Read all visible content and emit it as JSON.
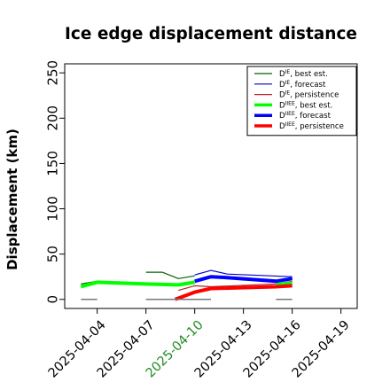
{
  "chart_data": {
    "type": "line",
    "title": "Ice edge displacement distance",
    "xlabel": "",
    "ylabel": "Displacement (km)",
    "ylim": [
      0,
      260
    ],
    "xlim": [
      "2025-04-02",
      "2025-04-20"
    ],
    "yticks": [
      0,
      50,
      100,
      150,
      200,
      250
    ],
    "xticks": [
      {
        "label": "2025-04-04",
        "date": "2025-04-04",
        "color": "#000000"
      },
      {
        "label": "2025-04-07",
        "date": "2025-04-07",
        "color": "#000000"
      },
      {
        "label": "2025-04-10",
        "date": "2025-04-10",
        "color": "#228B22"
      },
      {
        "label": "2025-04-13",
        "date": "2025-04-13",
        "color": "#000000"
      },
      {
        "label": "2025-04-16",
        "date": "2025-04-16",
        "color": "#000000"
      },
      {
        "label": "2025-04-19",
        "date": "2025-04-19",
        "color": "#000000"
      }
    ],
    "grid": false,
    "legend_position": "top-right",
    "series": [
      {
        "name_main": "D",
        "name_sup": "IE",
        "name_rest": ", best est.",
        "color": "#006400",
        "width": 1.2,
        "points": [
          [
            "2025-04-03",
            17
          ],
          [
            "2025-04-04",
            20
          ]
        ]
      },
      {
        "name_main": "D",
        "name_sup": "IE",
        "name_rest": ", best est.",
        "color": "#006400",
        "width": 1.2,
        "legend": false,
        "points": [
          [
            "2025-04-07",
            30
          ],
          [
            "2025-04-08",
            30
          ],
          [
            "2025-04-09",
            23
          ],
          [
            "2025-04-10",
            26
          ]
        ]
      },
      {
        "name_main": "D",
        "name_sup": "IE",
        "name_rest": ", best est.",
        "color": "#006400",
        "width": 1.2,
        "legend": false,
        "points": [
          [
            "2025-04-15",
            21
          ],
          [
            "2025-04-16",
            23
          ]
        ]
      },
      {
        "name_main": "D",
        "name_sup": "IE",
        "name_rest": ", forecast",
        "color": "#0000CD",
        "width": 1.2,
        "points": [
          [
            "2025-04-10",
            27
          ],
          [
            "2025-04-11",
            32
          ],
          [
            "2025-04-12",
            28
          ],
          [
            "2025-04-16",
            25
          ]
        ]
      },
      {
        "name_main": "D",
        "name_sup": "IE",
        "name_rest": ", persistence",
        "color": "#B22222",
        "width": 1.2,
        "points": [
          [
            "2025-04-09",
            10
          ],
          [
            "2025-04-10",
            15
          ],
          [
            "2025-04-11",
            14
          ],
          [
            "2025-04-15",
            17
          ],
          [
            "2025-04-16",
            20
          ]
        ]
      },
      {
        "name_main": "D",
        "name_sup": "IIEE",
        "name_rest": ", best est.",
        "color": "#00FF00",
        "width": 4,
        "points": [
          [
            "2025-04-03",
            14
          ],
          [
            "2025-04-04",
            19
          ],
          [
            "2025-04-07",
            17
          ],
          [
            "2025-04-09",
            16
          ],
          [
            "2025-04-10",
            19
          ]
        ]
      },
      {
        "name_main": "D",
        "name_sup": "IIEE",
        "name_rest": ", best est.",
        "color": "#00FF00",
        "width": 4,
        "legend": false,
        "points": [
          [
            "2025-04-15",
            16
          ],
          [
            "2025-04-16",
            18
          ]
        ]
      },
      {
        "name_main": "D",
        "name_sup": "IIEE",
        "name_rest": ", forecast",
        "color": "#0000FF",
        "width": 4,
        "points": [
          [
            "2025-04-10",
            20
          ],
          [
            "2025-04-11",
            25
          ],
          [
            "2025-04-12",
            24
          ],
          [
            "2025-04-15",
            20
          ],
          [
            "2025-04-16",
            23
          ]
        ]
      },
      {
        "name_main": "D",
        "name_sup": "IIEE",
        "name_rest": ", persistence",
        "color": "#FF0000",
        "width": 4,
        "points": [
          [
            "2025-04-08.8",
            0
          ],
          [
            "2025-04-10",
            8
          ],
          [
            "2025-04-11",
            12
          ],
          [
            "2025-04-15",
            14
          ],
          [
            "2025-04-16",
            15
          ]
        ]
      },
      {
        "name_main": "",
        "name_sup": "",
        "name_rest": "",
        "color": "#777777",
        "width": 1.5,
        "legend": false,
        "points": [
          [
            "2025-04-03",
            0
          ],
          [
            "2025-04-04",
            0
          ]
        ]
      },
      {
        "name_main": "",
        "name_sup": "",
        "name_rest": "",
        "color": "#777777",
        "width": 1.5,
        "legend": false,
        "points": [
          [
            "2025-04-07",
            0
          ],
          [
            "2025-04-11",
            0
          ]
        ]
      },
      {
        "name_main": "",
        "name_sup": "",
        "name_rest": "",
        "color": "#777777",
        "width": 1.5,
        "legend": false,
        "points": [
          [
            "2025-04-15",
            0
          ],
          [
            "2025-04-16",
            0
          ]
        ]
      }
    ]
  }
}
